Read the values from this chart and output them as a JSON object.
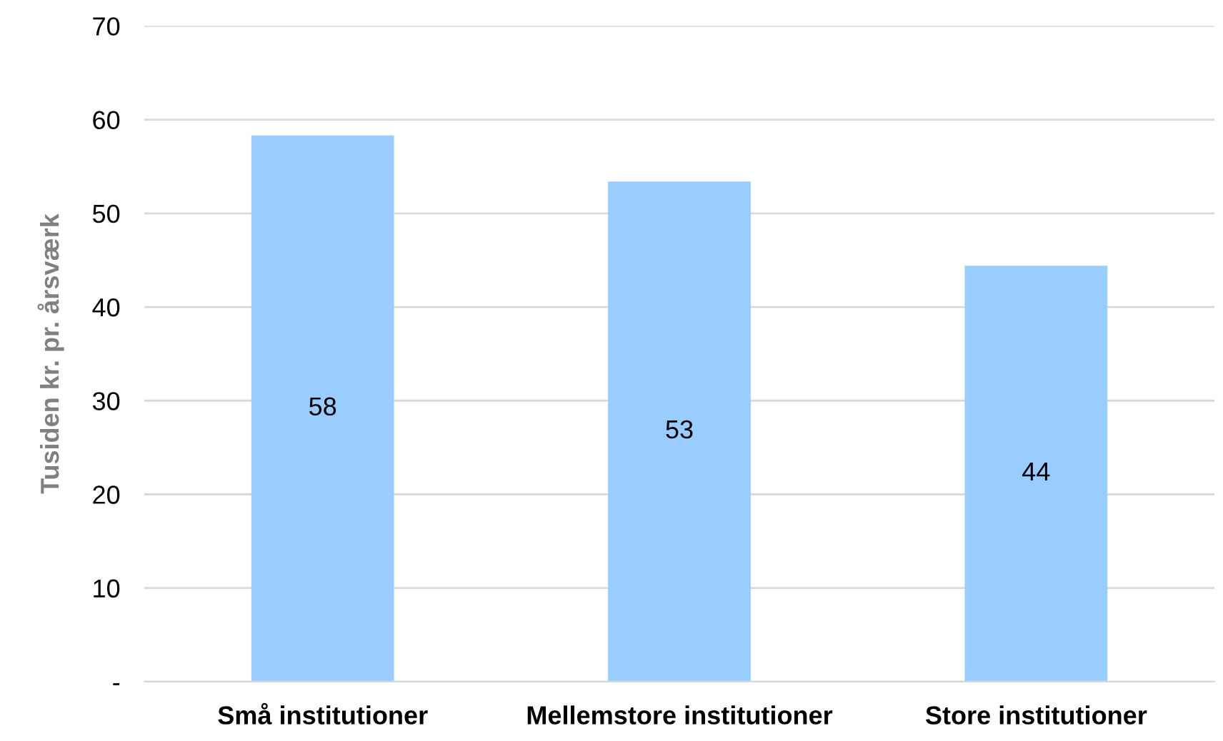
{
  "chart_data": {
    "type": "bar",
    "ylabel": "Tusiden kr. pr. årsværk",
    "categories": [
      "Små institutioner",
      "Mellemstore institutioner",
      "Store institutioner"
    ],
    "values": [
      58.3,
      53.4,
      44.4
    ],
    "value_labels": [
      "58",
      "53",
      "44"
    ],
    "color": "#99ccff",
    "ylim": [
      0,
      70
    ],
    "yticks": [
      {
        "value": 0,
        "label": "-"
      },
      10,
      20,
      30,
      40,
      50,
      60,
      70
    ],
    "grid": "y"
  }
}
